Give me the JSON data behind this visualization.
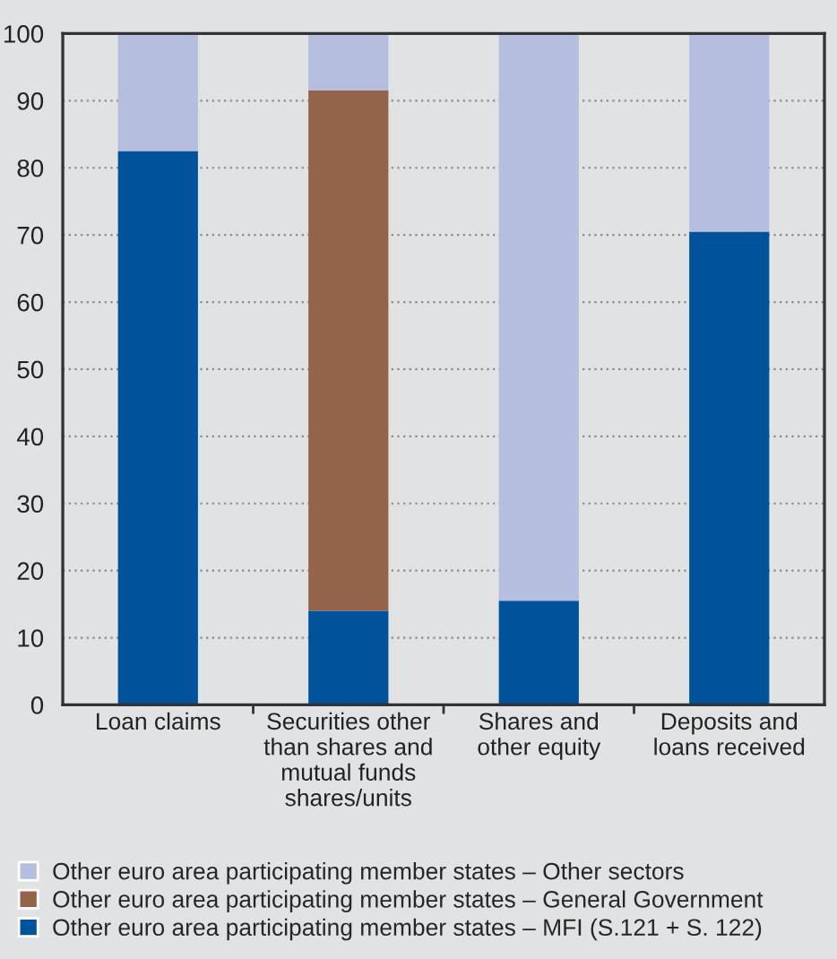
{
  "chart_data": {
    "type": "bar",
    "stacked": true,
    "categories": [
      "Loan claims",
      "Securities other\nthan shares and\nmutual funds\nshares/units",
      "Shares and\nother equity",
      "Deposits and\nloans received"
    ],
    "series": [
      {
        "name": "Other euro area participating member states – MFI (S.121 + S. 122)",
        "color": "#00529b",
        "values": [
          82.5,
          14,
          15.5,
          70.5
        ]
      },
      {
        "name": "Other euro area participating member states – General Government",
        "color": "#93634a",
        "values": [
          0,
          77.5,
          0,
          0
        ]
      },
      {
        "name": "Other euro area participating member states – Other sectors",
        "color": "#b5bedf",
        "values": [
          17.5,
          8.5,
          84.5,
          29.5
        ]
      }
    ],
    "ylim": [
      0,
      100
    ],
    "yticks": [
      0,
      10,
      20,
      30,
      40,
      50,
      60,
      70,
      80,
      90,
      100
    ],
    "grid": "y",
    "legend": "bottom"
  }
}
